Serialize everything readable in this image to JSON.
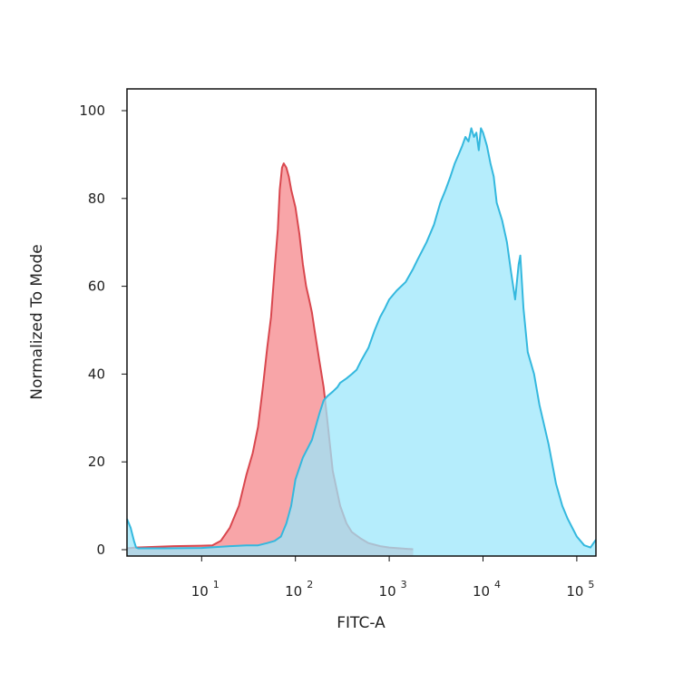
{
  "chart_data": {
    "type": "area",
    "xlabel": "FITC-A",
    "ylabel": "Normalized To Mode",
    "xscale": "log",
    "xlim": [
      1.6,
      160000
    ],
    "ylim": [
      0,
      100
    ],
    "grid": false,
    "legend": "none",
    "x_ticks": [
      {
        "base": "10",
        "exp": "1",
        "value": 10
      },
      {
        "base": "10",
        "exp": "2",
        "value": 100
      },
      {
        "base": "10",
        "exp": "3",
        "value": 1000
      },
      {
        "base": "10",
        "exp": "4",
        "value": 10000
      },
      {
        "base": "10",
        "exp": "5",
        "value": 100000
      }
    ],
    "y_ticks": [
      0,
      20,
      40,
      60,
      80,
      100
    ],
    "series": [
      {
        "fill": "#f8a5a8",
        "stroke": "#d9474e",
        "x": [
          1.6,
          2.0,
          5,
          10,
          13,
          16,
          20,
          25,
          30,
          35,
          40,
          45,
          50,
          55,
          60,
          65,
          68,
          72,
          75,
          80,
          85,
          90,
          100,
          110,
          120,
          130,
          140,
          150,
          160,
          180,
          200,
          220,
          250,
          300,
          350,
          400,
          500,
          600,
          800,
          1000,
          1500,
          1800
        ],
        "y": [
          0.3,
          0.5,
          0.8,
          0.9,
          1,
          2,
          5,
          10,
          17,
          22,
          28,
          37,
          46,
          53,
          64,
          73,
          82,
          87,
          88,
          87,
          85,
          82,
          78,
          72,
          65,
          60,
          57,
          54,
          50,
          43,
          37,
          29,
          18,
          10,
          6,
          4,
          2.5,
          1.5,
          0.8,
          0.5,
          0.2,
          0.1
        ]
      },
      {
        "fill": "#9ce7fb",
        "stroke": "#34b8de",
        "x": [
          1.6,
          1.75,
          1.9,
          2.0,
          2.1,
          4,
          10,
          20,
          30,
          40,
          50,
          60,
          70,
          80,
          90,
          100,
          120,
          150,
          180,
          200,
          220,
          250,
          280,
          300,
          350,
          400,
          450,
          500,
          600,
          700,
          800,
          900,
          1000,
          1200,
          1500,
          1800,
          2000,
          2500,
          3000,
          3500,
          4000,
          4500,
          5000,
          5500,
          6000,
          6500,
          7000,
          7500,
          8000,
          8500,
          9000,
          9500,
          10000,
          11000,
          12000,
          13000,
          14000,
          16000,
          18000,
          20000,
          22000,
          24000,
          25000,
          27000,
          30000,
          35000,
          40000,
          50000,
          60000,
          70000,
          80000,
          100000,
          120000,
          140000,
          160000
        ],
        "y": [
          7,
          5,
          2,
          0.5,
          0.3,
          0.3,
          0.4,
          0.8,
          1,
          1,
          1.5,
          2,
          3,
          6,
          10,
          16,
          21,
          25,
          31,
          34,
          35,
          36,
          37,
          38,
          39,
          40,
          41,
          43,
          46,
          50,
          53,
          55,
          57,
          59,
          61,
          64,
          66,
          70,
          74,
          79,
          82,
          85,
          88,
          90,
          92,
          94,
          93,
          96,
          94,
          95,
          91,
          96,
          95,
          92,
          88,
          85,
          79,
          75,
          70,
          63,
          57,
          65,
          67,
          55,
          45,
          40,
          33,
          24,
          15,
          10,
          7,
          3,
          1,
          0.5,
          2.3
        ]
      }
    ]
  }
}
